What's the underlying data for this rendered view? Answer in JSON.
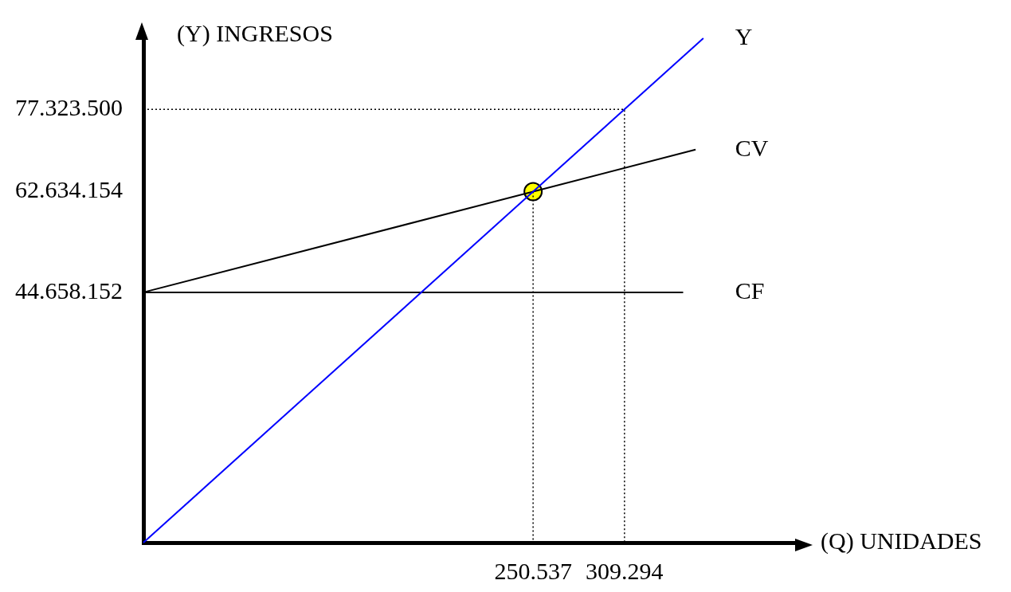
{
  "chart_data": {
    "type": "line",
    "xlabel": "(Q) UNIDADES",
    "ylabel": "(Y) INGRESOS",
    "xlim": [
      0,
      420000
    ],
    "ylim": [
      0,
      90000000
    ],
    "xticks": [
      {
        "value": 250537,
        "label": "250.537"
      },
      {
        "value": 309294,
        "label": "309.294"
      }
    ],
    "yticks": [
      {
        "value": 44658152,
        "label": "44.658.152"
      },
      {
        "value": 62634154,
        "label": "62.634.154"
      },
      {
        "value": 77323500,
        "label": "77.323.500"
      }
    ],
    "grid": false,
    "legend": false,
    "series": [
      {
        "name": "Y",
        "color": "#0000ff",
        "x": [
          0,
          360000
        ],
        "values": [
          0,
          90000000
        ]
      },
      {
        "name": "CV",
        "color": "#000000",
        "x": [
          0,
          250537,
          355000
        ],
        "values": [
          44658152,
          62634154,
          70130000
        ]
      },
      {
        "name": "CF",
        "color": "#000000",
        "x": [
          0,
          347000
        ],
        "values": [
          44658152,
          44658152
        ]
      },
      {
        "color": "#000000",
        "line_style": "dotted",
        "x": [
          0,
          309294,
          309294
        ],
        "values": [
          77323500,
          77323500,
          0
        ]
      },
      {
        "color": "#000000",
        "line_style": "dotted",
        "x": [
          250537,
          250537
        ],
        "values": [
          62634154,
          0
        ]
      },
      {
        "type": "scatter",
        "marker": "circle",
        "color": "#ffff00",
        "x": [
          250537
        ],
        "values": [
          62634154
        ]
      }
    ]
  }
}
